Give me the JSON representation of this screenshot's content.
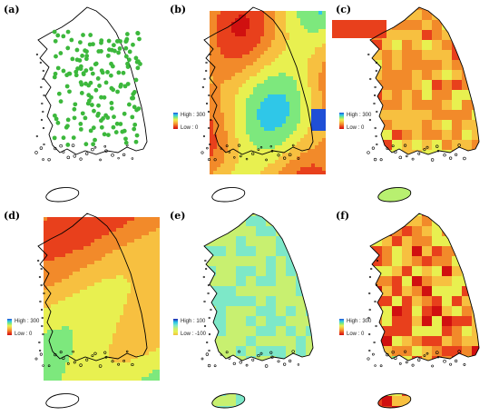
{
  "figure": {
    "panels": [
      {
        "id": "a",
        "label": "(a)",
        "type": "points",
        "legend": null
      },
      {
        "id": "b",
        "label": "(b)",
        "type": "smooth",
        "legend": {
          "high": "High : 300",
          "low": "Low : 0"
        },
        "palette": "warm"
      },
      {
        "id": "c",
        "label": "(c)",
        "type": "grid",
        "legend": {
          "high": "High : 300",
          "low": "Low : 0"
        },
        "palette": "warm"
      },
      {
        "id": "d",
        "label": "(d)",
        "type": "smooth",
        "legend": {
          "high": "High : 300",
          "low": "Low : 0"
        },
        "palette": "warm"
      },
      {
        "id": "e",
        "label": "(e)",
        "type": "grid",
        "legend": {
          "high": "High : 100",
          "low": "Low : -100"
        },
        "palette": "cool"
      },
      {
        "id": "f",
        "label": "(f)",
        "type": "grid",
        "legend": {
          "high": "High : 300",
          "low": "Low : 0"
        },
        "palette": "warm"
      }
    ],
    "colors": {
      "points": "#3cb83c",
      "coast": "#000000",
      "warm_ramp": [
        "#1f4fd6",
        "#2fc7e8",
        "#7de87d",
        "#e8f050",
        "#f7c040",
        "#f28a2a",
        "#e8401c",
        "#d01010"
      ],
      "cool_ramp": [
        "#1f1fb0",
        "#27c4e8",
        "#7de8c8",
        "#c8f070",
        "#e8f050",
        "#f0c040"
      ]
    }
  }
}
